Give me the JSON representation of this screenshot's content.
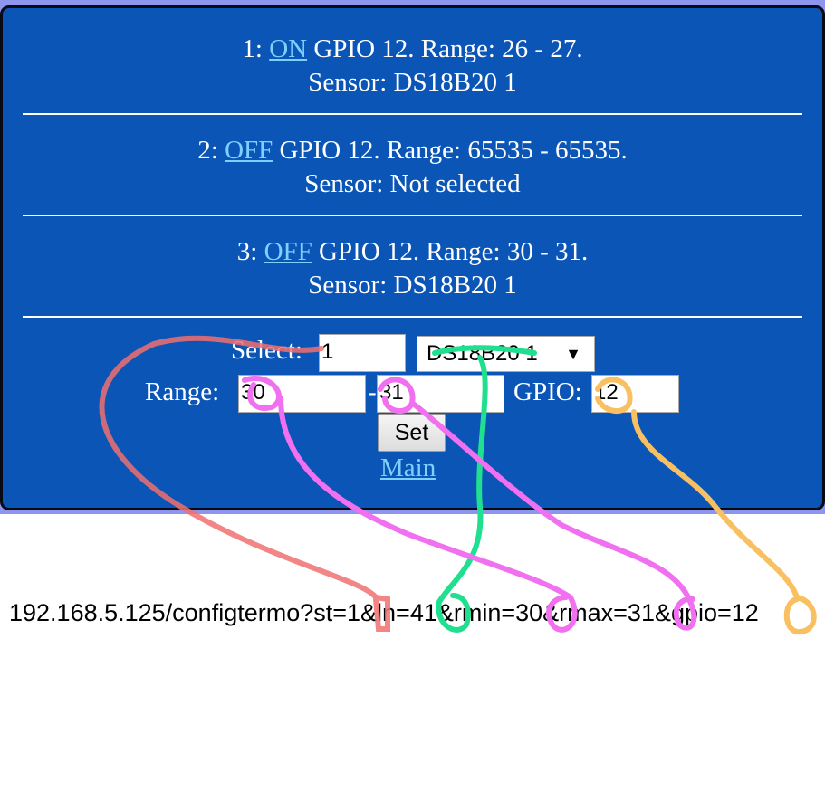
{
  "entries": [
    {
      "num": "1:",
      "state": "ON",
      "text": "GPIO 12. Range: 26 - 27.",
      "sensor": "Sensor: DS18B20 1"
    },
    {
      "num": "2:",
      "state": "OFF",
      "text": "GPIO 12. Range: 65535 - 65535.",
      "sensor": "Sensor: Not selected"
    },
    {
      "num": "3:",
      "state": "OFF",
      "text": "GPIO 12. Range: 30 - 31.",
      "sensor": "Sensor: DS18B20 1"
    }
  ],
  "form": {
    "select_label": "Select:",
    "select_value": "1",
    "sensor_selected": "DS18B20 1",
    "dropdown_arrow": "▼",
    "range_label": "Range:",
    "range_min": "30",
    "range_sep": "-",
    "range_max": "31",
    "gpio_label": "GPIO:",
    "gpio_value": "12",
    "set_label": "Set",
    "main_link": "Main"
  },
  "url": "192.168.5.125/configtermo?st=1&ln=41&rmin=30&rmax=31&gpio=12",
  "colors": {
    "panel": "#0a55b5",
    "link": "#7fd0ff",
    "annot_red": "#f07070",
    "annot_green": "#20e090",
    "annot_pink": "#f070f0",
    "annot_orange": "#f8c060"
  }
}
